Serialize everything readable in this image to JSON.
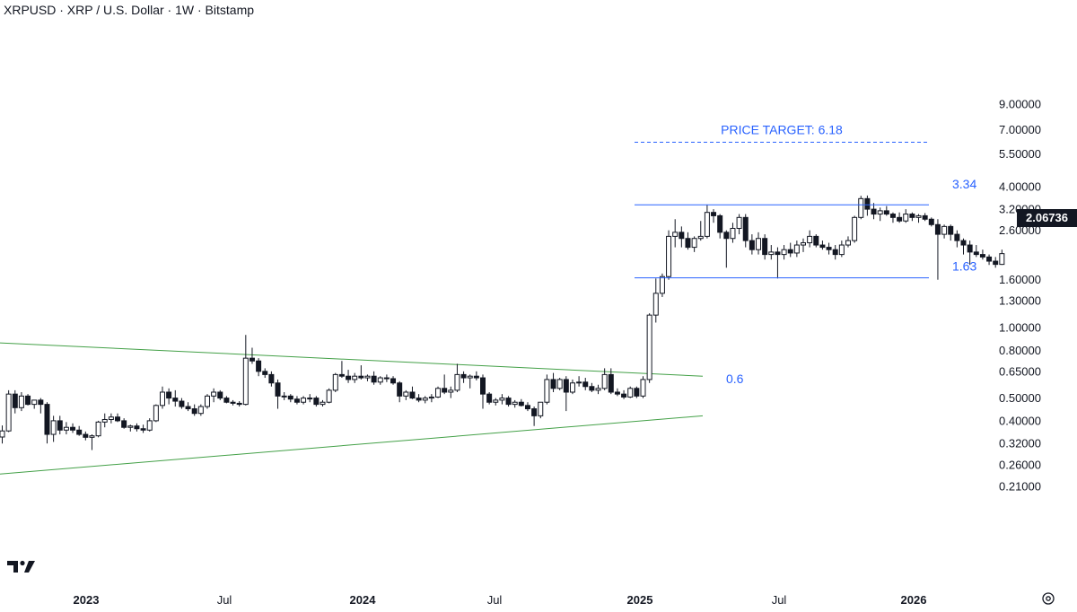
{
  "header": {
    "title": "XRPUSD · XRP / U.S. Dollar · 1W · Bitstamp"
  },
  "current_price": "2.06736",
  "chart_data": {
    "type": "candlestick",
    "scale": "log",
    "y_axis_ticks": [
      "9.00000",
      "7.00000",
      "5.50000",
      "4.00000",
      "3.20000",
      "2.60000",
      "1.60000",
      "1.30000",
      "1.00000",
      "0.80000",
      "0.65000",
      "0.50000",
      "0.40000",
      "0.32000",
      "0.26000",
      "0.21000"
    ],
    "x_axis_ticks": [
      "2023",
      "Jul",
      "2024",
      "Jul",
      "2025",
      "Jul",
      "2026"
    ],
    "annotations": [
      {
        "label": "PRICE TARGET: 6.18",
        "value": 6.18,
        "style": "dashed",
        "color": "#2962ff"
      },
      {
        "label": "3.34",
        "value": 3.34,
        "style": "solid",
        "color": "#2962ff"
      },
      {
        "label": "1.63",
        "value": 1.63,
        "style": "solid",
        "color": "#2962ff"
      },
      {
        "label": "0.6",
        "value": 0.6,
        "style": "none",
        "color": "#2962ff"
      }
    ],
    "trendlines": [
      {
        "name": "upper",
        "from": [
          "2022-12",
          0.86
        ],
        "to": [
          "2025-03",
          0.62
        ],
        "color": "#43a047"
      },
      {
        "name": "lower",
        "from": [
          "2022-12",
          0.237
        ],
        "to": [
          "2025-03",
          0.42
        ],
        "color": "#43a047"
      }
    ],
    "candles": [
      [
        0.341,
        0.382,
        0.32,
        0.362
      ],
      [
        0.362,
        0.54,
        0.358,
        0.52
      ],
      [
        0.52,
        0.54,
        0.43,
        0.455
      ],
      [
        0.455,
        0.53,
        0.44,
        0.51
      ],
      [
        0.51,
        0.52,
        0.465,
        0.47
      ],
      [
        0.47,
        0.49,
        0.45,
        0.49
      ],
      [
        0.49,
        0.5,
        0.43,
        0.47
      ],
      [
        0.47,
        0.48,
        0.32,
        0.35
      ],
      [
        0.35,
        0.42,
        0.325,
        0.4
      ],
      [
        0.4,
        0.42,
        0.35,
        0.365
      ],
      [
        0.365,
        0.395,
        0.35,
        0.375
      ],
      [
        0.375,
        0.39,
        0.355,
        0.365
      ],
      [
        0.365,
        0.38,
        0.345,
        0.35
      ],
      [
        0.35,
        0.36,
        0.33,
        0.34
      ],
      [
        0.34,
        0.35,
        0.3,
        0.345
      ],
      [
        0.345,
        0.4,
        0.34,
        0.395
      ],
      [
        0.395,
        0.43,
        0.375,
        0.405
      ],
      [
        0.405,
        0.43,
        0.39,
        0.415
      ],
      [
        0.415,
        0.43,
        0.395,
        0.4
      ],
      [
        0.4,
        0.41,
        0.37,
        0.375
      ],
      [
        0.375,
        0.385,
        0.36,
        0.38
      ],
      [
        0.38,
        0.39,
        0.36,
        0.37
      ],
      [
        0.37,
        0.385,
        0.355,
        0.365
      ],
      [
        0.365,
        0.41,
        0.36,
        0.4
      ],
      [
        0.4,
        0.47,
        0.395,
        0.465
      ],
      [
        0.465,
        0.56,
        0.45,
        0.53
      ],
      [
        0.53,
        0.55,
        0.47,
        0.5
      ],
      [
        0.5,
        0.54,
        0.46,
        0.485
      ],
      [
        0.485,
        0.5,
        0.45,
        0.46
      ],
      [
        0.46,
        0.48,
        0.44,
        0.45
      ],
      [
        0.45,
        0.47,
        0.42,
        0.43
      ],
      [
        0.43,
        0.47,
        0.42,
        0.46
      ],
      [
        0.46,
        0.52,
        0.45,
        0.51
      ],
      [
        0.51,
        0.55,
        0.48,
        0.53
      ],
      [
        0.53,
        0.54,
        0.49,
        0.5
      ],
      [
        0.5,
        0.51,
        0.475,
        0.48
      ],
      [
        0.48,
        0.49,
        0.465,
        0.475
      ],
      [
        0.475,
        0.485,
        0.46,
        0.47
      ],
      [
        0.47,
        0.93,
        0.465,
        0.74
      ],
      [
        0.74,
        0.82,
        0.7,
        0.72
      ],
      [
        0.72,
        0.74,
        0.62,
        0.65
      ],
      [
        0.65,
        0.67,
        0.61,
        0.63
      ],
      [
        0.63,
        0.65,
        0.56,
        0.58
      ],
      [
        0.58,
        0.6,
        0.45,
        0.51
      ],
      [
        0.51,
        0.53,
        0.49,
        0.51
      ],
      [
        0.51,
        0.52,
        0.48,
        0.495
      ],
      [
        0.495,
        0.51,
        0.47,
        0.48
      ],
      [
        0.48,
        0.51,
        0.47,
        0.5
      ],
      [
        0.5,
        0.52,
        0.48,
        0.5
      ],
      [
        0.5,
        0.51,
        0.46,
        0.47
      ],
      [
        0.47,
        0.49,
        0.46,
        0.48
      ],
      [
        0.48,
        0.55,
        0.475,
        0.54
      ],
      [
        0.54,
        0.64,
        0.53,
        0.63
      ],
      [
        0.63,
        0.72,
        0.61,
        0.62
      ],
      [
        0.62,
        0.66,
        0.58,
        0.6
      ],
      [
        0.6,
        0.64,
        0.58,
        0.62
      ],
      [
        0.62,
        0.69,
        0.6,
        0.61
      ],
      [
        0.61,
        0.63,
        0.59,
        0.62
      ],
      [
        0.62,
        0.65,
        0.57,
        0.585
      ],
      [
        0.585,
        0.62,
        0.57,
        0.61
      ],
      [
        0.61,
        0.63,
        0.585,
        0.605
      ],
      [
        0.605,
        0.62,
        0.57,
        0.58
      ],
      [
        0.58,
        0.59,
        0.48,
        0.51
      ],
      [
        0.51,
        0.54,
        0.49,
        0.53
      ],
      [
        0.53,
        0.56,
        0.495,
        0.5
      ],
      [
        0.5,
        0.52,
        0.48,
        0.49
      ],
      [
        0.49,
        0.51,
        0.475,
        0.5
      ],
      [
        0.5,
        0.52,
        0.48,
        0.505
      ],
      [
        0.505,
        0.56,
        0.5,
        0.55
      ],
      [
        0.55,
        0.63,
        0.52,
        0.53
      ],
      [
        0.53,
        0.56,
        0.5,
        0.54
      ],
      [
        0.54,
        0.7,
        0.53,
        0.63
      ],
      [
        0.63,
        0.65,
        0.58,
        0.61
      ],
      [
        0.61,
        0.63,
        0.55,
        0.62
      ],
      [
        0.62,
        0.65,
        0.595,
        0.61
      ],
      [
        0.61,
        0.63,
        0.45,
        0.52
      ],
      [
        0.52,
        0.53,
        0.47,
        0.48
      ],
      [
        0.48,
        0.5,
        0.465,
        0.49
      ],
      [
        0.49,
        0.52,
        0.47,
        0.5
      ],
      [
        0.5,
        0.51,
        0.46,
        0.47
      ],
      [
        0.47,
        0.49,
        0.455,
        0.48
      ],
      [
        0.48,
        0.495,
        0.46,
        0.465
      ],
      [
        0.465,
        0.48,
        0.44,
        0.45
      ],
      [
        0.45,
        0.46,
        0.38,
        0.42
      ],
      [
        0.42,
        0.48,
        0.41,
        0.48
      ],
      [
        0.48,
        0.63,
        0.47,
        0.6
      ],
      [
        0.6,
        0.64,
        0.53,
        0.55
      ],
      [
        0.55,
        0.61,
        0.54,
        0.6
      ],
      [
        0.6,
        0.62,
        0.44,
        0.53
      ],
      [
        0.53,
        0.6,
        0.52,
        0.58
      ],
      [
        0.58,
        0.62,
        0.56,
        0.585
      ],
      [
        0.585,
        0.61,
        0.54,
        0.56
      ],
      [
        0.56,
        0.58,
        0.53,
        0.54
      ],
      [
        0.54,
        0.57,
        0.52,
        0.55
      ],
      [
        0.55,
        0.67,
        0.54,
        0.63
      ],
      [
        0.63,
        0.67,
        0.52,
        0.53
      ],
      [
        0.53,
        0.55,
        0.51,
        0.52
      ],
      [
        0.52,
        0.54,
        0.495,
        0.505
      ],
      [
        0.505,
        0.56,
        0.5,
        0.55
      ],
      [
        0.55,
        0.56,
        0.5,
        0.51
      ],
      [
        0.51,
        0.62,
        0.5,
        0.6
      ],
      [
        0.6,
        1.15,
        0.58,
        1.13
      ],
      [
        1.13,
        1.62,
        1.05,
        1.4
      ],
      [
        1.4,
        1.7,
        1.35,
        1.65
      ],
      [
        1.65,
        2.6,
        1.6,
        2.45
      ],
      [
        2.45,
        2.9,
        2.2,
        2.55
      ],
      [
        2.55,
        2.7,
        2.2,
        2.4
      ],
      [
        2.4,
        2.55,
        2.15,
        2.2
      ],
      [
        2.2,
        2.45,
        2.1,
        2.4
      ],
      [
        2.4,
        2.85,
        2.35,
        2.45
      ],
      [
        2.45,
        3.35,
        2.4,
        3.1
      ],
      [
        3.1,
        3.2,
        2.8,
        3.0
      ],
      [
        3.0,
        3.05,
        2.4,
        2.55
      ],
      [
        2.55,
        2.6,
        1.8,
        2.4
      ],
      [
        2.4,
        2.8,
        2.3,
        2.65
      ],
      [
        2.65,
        3.05,
        2.5,
        2.95
      ],
      [
        2.95,
        3.05,
        2.2,
        2.35
      ],
      [
        2.35,
        2.5,
        2.05,
        2.15
      ],
      [
        2.15,
        2.55,
        2.05,
        2.4
      ],
      [
        2.4,
        2.5,
        1.95,
        2.05
      ],
      [
        2.05,
        2.25,
        1.95,
        2.1
      ],
      [
        2.1,
        2.2,
        1.62,
        2.05
      ],
      [
        2.05,
        2.25,
        1.95,
        2.15
      ],
      [
        2.15,
        2.3,
        2.0,
        2.08
      ],
      [
        2.08,
        2.35,
        2.0,
        2.25
      ],
      [
        2.25,
        2.4,
        2.1,
        2.3
      ],
      [
        2.3,
        2.6,
        2.2,
        2.45
      ],
      [
        2.45,
        2.5,
        2.2,
        2.25
      ],
      [
        2.25,
        2.35,
        2.15,
        2.2
      ],
      [
        2.2,
        2.3,
        2.05,
        2.15
      ],
      [
        2.15,
        2.25,
        1.95,
        2.05
      ],
      [
        2.05,
        2.35,
        2.0,
        2.25
      ],
      [
        2.25,
        2.45,
        2.2,
        2.35
      ],
      [
        2.35,
        3.0,
        2.3,
        2.95
      ],
      [
        2.95,
        3.65,
        2.9,
        3.55
      ],
      [
        3.55,
        3.66,
        3.0,
        3.2
      ],
      [
        3.2,
        3.4,
        2.9,
        3.05
      ],
      [
        3.05,
        3.25,
        2.85,
        3.15
      ],
      [
        3.15,
        3.3,
        3.0,
        3.05
      ],
      [
        3.05,
        3.1,
        2.8,
        2.95
      ],
      [
        2.95,
        3.1,
        2.8,
        2.85
      ],
      [
        2.85,
        3.2,
        2.8,
        3.05
      ],
      [
        3.05,
        3.1,
        2.85,
        2.95
      ],
      [
        2.95,
        3.05,
        2.8,
        3.0
      ],
      [
        3.0,
        3.08,
        2.85,
        2.9
      ],
      [
        2.9,
        2.95,
        2.7,
        2.75
      ],
      [
        2.75,
        2.9,
        1.6,
        2.5
      ],
      [
        2.5,
        2.75,
        2.4,
        2.7
      ],
      [
        2.7,
        2.75,
        2.35,
        2.5
      ],
      [
        2.5,
        2.6,
        2.2,
        2.35
      ],
      [
        2.35,
        2.4,
        2.05,
        2.25
      ],
      [
        2.25,
        2.35,
        1.85,
        2.1
      ],
      [
        2.1,
        2.25,
        2.0,
        2.05
      ],
      [
        2.05,
        2.15,
        1.95,
        2.0
      ],
      [
        2.0,
        2.05,
        1.85,
        1.92
      ],
      [
        1.92,
        2.0,
        1.8,
        1.86
      ],
      [
        1.86,
        2.15,
        1.85,
        2.0674
      ]
    ]
  }
}
